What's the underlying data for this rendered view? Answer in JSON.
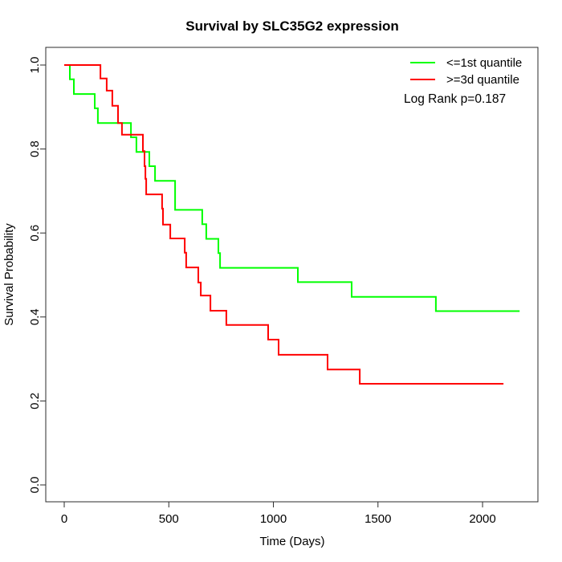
{
  "chart_data": {
    "type": "line",
    "subtype": "kaplan-meier-step",
    "title": "Survival by SLC35G2 expression",
    "xlabel": "Time (Days)",
    "ylabel": "Survival Probability",
    "grid": false,
    "legend_position": "top-right",
    "annotation": "Log Rank p=0.187",
    "xlim": [
      0,
      2200
    ],
    "ylim": [
      0.0,
      1.0
    ],
    "x_ticks": [
      {
        "value": 0,
        "label": "0"
      },
      {
        "value": 500,
        "label": "500"
      },
      {
        "value": 1000,
        "label": "1000"
      },
      {
        "value": 1500,
        "label": "1500"
      },
      {
        "value": 2000,
        "label": "2000"
      }
    ],
    "y_ticks": [
      {
        "value": 0.0,
        "label": "0.0"
      },
      {
        "value": 0.2,
        "label": "0.2"
      },
      {
        "value": 0.4,
        "label": "0.4"
      },
      {
        "value": 0.6,
        "label": "0.6"
      },
      {
        "value": 0.8,
        "label": "0.8"
      },
      {
        "value": 1.0,
        "label": "1.0"
      }
    ],
    "series": [
      {
        "name": "<=1st quantile",
        "color": "#00FF00",
        "end_time": 2177,
        "points": [
          [
            0,
            1.0
          ],
          [
            27,
            0.966
          ],
          [
            46,
            0.931
          ],
          [
            146,
            0.897
          ],
          [
            161,
            0.862
          ],
          [
            319,
            0.828
          ],
          [
            345,
            0.793
          ],
          [
            407,
            0.759
          ],
          [
            434,
            0.724
          ],
          [
            530,
            0.655
          ],
          [
            660,
            0.621
          ],
          [
            679,
            0.586
          ],
          [
            737,
            0.552
          ],
          [
            745,
            0.517
          ],
          [
            1117,
            0.483
          ],
          [
            1374,
            0.448
          ],
          [
            1777,
            0.414
          ]
        ]
      },
      {
        "name": ">=3d quantile",
        "color": "#FF0000",
        "end_time": 2100,
        "points": [
          [
            0,
            1.0
          ],
          [
            173,
            0.968
          ],
          [
            203,
            0.939
          ],
          [
            230,
            0.903
          ],
          [
            257,
            0.862
          ],
          [
            276,
            0.834
          ],
          [
            376,
            0.795
          ],
          [
            384,
            0.759
          ],
          [
            388,
            0.729
          ],
          [
            392,
            0.692
          ],
          [
            468,
            0.658
          ],
          [
            472,
            0.62
          ],
          [
            507,
            0.587
          ],
          [
            576,
            0.553
          ],
          [
            583,
            0.518
          ],
          [
            641,
            0.482
          ],
          [
            653,
            0.451
          ],
          [
            699,
            0.415
          ],
          [
            775,
            0.381
          ],
          [
            975,
            0.346
          ],
          [
            1025,
            0.31
          ],
          [
            1259,
            0.275
          ],
          [
            1413,
            0.241
          ]
        ]
      }
    ]
  }
}
